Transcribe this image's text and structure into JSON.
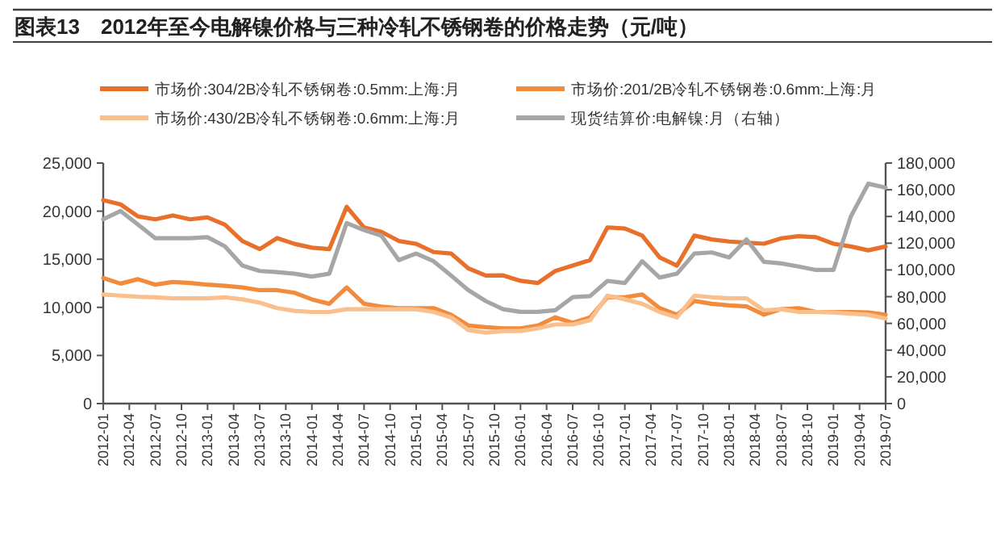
{
  "chart_data": {
    "type": "line",
    "title": "图表13　2012年至今电解镍价格与三种冷轧不锈钢卷的价格走势（元/吨）",
    "legend": "top",
    "x": [
      "2012-01",
      "2012-03",
      "2012-05",
      "2012-07",
      "2012-09",
      "2012-11",
      "2013-01",
      "2013-03",
      "2013-05",
      "2013-07",
      "2013-09",
      "2013-11",
      "2014-01",
      "2014-03",
      "2014-05",
      "2014-07",
      "2014-09",
      "2014-11",
      "2015-01",
      "2015-03",
      "2015-05",
      "2015-07",
      "2015-09",
      "2015-11",
      "2016-01",
      "2016-03",
      "2016-05",
      "2016-07",
      "2016-09",
      "2016-11",
      "2017-01",
      "2017-03",
      "2017-05",
      "2017-07",
      "2017-09",
      "2017-11",
      "2018-01",
      "2018-03",
      "2018-05",
      "2018-07",
      "2018-09",
      "2018-11",
      "2019-01",
      "2019-03",
      "2019-05",
      "2019-07"
    ],
    "series": [
      {
        "name": "市场价:304/2B冷轧不锈钢卷:0.5mm:上海:月",
        "color": "#e8702a",
        "values": [
          21150,
          20700,
          19450,
          19150,
          19550,
          19150,
          19350,
          18600,
          16900,
          16050,
          17200,
          16600,
          16200,
          16050,
          20450,
          18300,
          17850,
          16900,
          16600,
          15750,
          15600,
          14050,
          13300,
          13320,
          12760,
          12530,
          13780,
          14340,
          14910,
          18310,
          18200,
          17460,
          15190,
          14340,
          17460,
          17060,
          16840,
          16720,
          16610,
          17180,
          17400,
          17290,
          16610,
          16330,
          15930,
          16330
        ]
      },
      {
        "name": "市场价:201/2B冷轧不锈钢卷:0.6mm:上海:月",
        "color": "#f28b3c",
        "values": [
          13040,
          12470,
          12930,
          12360,
          12640,
          12530,
          12360,
          12240,
          12070,
          11790,
          11790,
          11510,
          10830,
          10370,
          12070,
          10370,
          10090,
          9920,
          9920,
          9920,
          9240,
          8110,
          7940,
          7820,
          7820,
          8110,
          8960,
          8390,
          8960,
          11050,
          11050,
          11340,
          9920,
          9240,
          10660,
          10370,
          10200,
          10090,
          9240,
          9810,
          9920,
          9520,
          9520,
          9520,
          9470,
          9240
        ]
      },
      {
        "name": "市场价:430/2B冷轧不锈钢卷:0.6mm:上海:月",
        "color": "#f9bf8c",
        "values": [
          11340,
          11220,
          11110,
          11050,
          10940,
          10940,
          10940,
          11050,
          10830,
          10490,
          9920,
          9640,
          9520,
          9520,
          9810,
          9810,
          9810,
          9810,
          9810,
          9520,
          8960,
          7650,
          7370,
          7540,
          7540,
          7820,
          8220,
          8220,
          8670,
          11220,
          10830,
          10370,
          9520,
          8960,
          11220,
          11050,
          10940,
          10940,
          9690,
          9810,
          9520,
          9520,
          9470,
          9350,
          9240,
          8840
        ]
      },
      {
        "name": "现货结算价:电解镍:月（右轴）",
        "color": "#a6a6a6",
        "axis": "y2",
        "values": [
          138000,
          144100,
          133900,
          123700,
          123700,
          123700,
          124500,
          117600,
          103300,
          99200,
          98400,
          97200,
          95100,
          97200,
          135100,
          129800,
          125700,
          107400,
          112300,
          106500,
          95900,
          84900,
          76700,
          70600,
          68600,
          68600,
          69800,
          79600,
          80400,
          91800,
          90200,
          106500,
          94300,
          97200,
          112300,
          113100,
          109400,
          122900,
          106100,
          104900,
          102500,
          100000,
          100000,
          140000,
          164500,
          161600
        ]
      }
    ],
    "xlim": [
      "2012-01",
      "2019-07"
    ],
    "xticks": [
      {
        "value": "2012-01",
        "label": "2012-01"
      },
      {
        "value": "2012-04",
        "label": "2012-04"
      },
      {
        "value": "2012-07",
        "label": "2012-07"
      },
      {
        "value": "2012-10",
        "label": "2012-10"
      },
      {
        "value": "2013-01",
        "label": "2013-01"
      },
      {
        "value": "2013-04",
        "label": "2013-04"
      },
      {
        "value": "2013-07",
        "label": "2013-07"
      },
      {
        "value": "2013-10",
        "label": "2013-10"
      },
      {
        "value": "2014-01",
        "label": "2014-01"
      },
      {
        "value": "2014-04",
        "label": "2014-04"
      },
      {
        "value": "2014-07",
        "label": "2014-07"
      },
      {
        "value": "2014-10",
        "label": "2014-10"
      },
      {
        "value": "2015-01",
        "label": "2015-01"
      },
      {
        "value": "2015-04",
        "label": "2015-04"
      },
      {
        "value": "2015-07",
        "label": "2015-07"
      },
      {
        "value": "2015-10",
        "label": "2015-10"
      },
      {
        "value": "2016-01",
        "label": "2016-01"
      },
      {
        "value": "2016-04",
        "label": "2016-04"
      },
      {
        "value": "2016-07",
        "label": "2016-07"
      },
      {
        "value": "2016-10",
        "label": "2016-10"
      },
      {
        "value": "2017-01",
        "label": "2017-01"
      },
      {
        "value": "2017-04",
        "label": "2017-04"
      },
      {
        "value": "2017-07",
        "label": "2017-07"
      },
      {
        "value": "2017-10",
        "label": "2017-10"
      },
      {
        "value": "2018-01",
        "label": "2018-01"
      },
      {
        "value": "2018-04",
        "label": "2018-04"
      },
      {
        "value": "2018-07",
        "label": "2018-07"
      },
      {
        "value": "2018-10",
        "label": "2018-10"
      },
      {
        "value": "2019-01",
        "label": "2019-01"
      },
      {
        "value": "2019-04",
        "label": "2019-04"
      },
      {
        "value": "2019-07",
        "label": "2019-07"
      }
    ],
    "ylim": [
      0,
      25000
    ],
    "yticks": [
      {
        "value": 0,
        "label": "0"
      },
      {
        "value": 5000,
        "label": "5,000"
      },
      {
        "value": 10000,
        "label": "10,000"
      },
      {
        "value": 15000,
        "label": "15,000"
      },
      {
        "value": 20000,
        "label": "20,000"
      },
      {
        "value": 25000,
        "label": "25,000"
      }
    ],
    "y2lim": [
      0,
      180000
    ],
    "y2ticks": [
      {
        "value": 0,
        "label": "0"
      },
      {
        "value": 20000,
        "label": "20,000"
      },
      {
        "value": 40000,
        "label": "40,000"
      },
      {
        "value": 60000,
        "label": "60,000"
      },
      {
        "value": 80000,
        "label": "80,000"
      },
      {
        "value": 100000,
        "label": "100,000"
      },
      {
        "value": 120000,
        "label": "120,000"
      },
      {
        "value": 140000,
        "label": "140,000"
      },
      {
        "value": 160000,
        "label": "160,000"
      },
      {
        "value": 180000,
        "label": "180,000"
      }
    ]
  }
}
